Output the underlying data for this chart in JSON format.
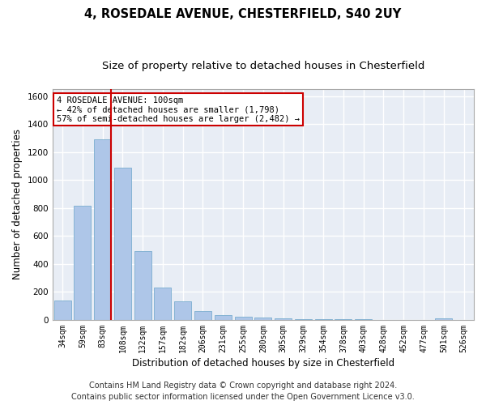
{
  "title1": "4, ROSEDALE AVENUE, CHESTERFIELD, S40 2UY",
  "title2": "Size of property relative to detached houses in Chesterfield",
  "xlabel": "Distribution of detached houses by size in Chesterfield",
  "ylabel": "Number of detached properties",
  "categories": [
    "34sqm",
    "59sqm",
    "83sqm",
    "108sqm",
    "132sqm",
    "157sqm",
    "182sqm",
    "206sqm",
    "231sqm",
    "255sqm",
    "280sqm",
    "305sqm",
    "329sqm",
    "354sqm",
    "378sqm",
    "403sqm",
    "428sqm",
    "452sqm",
    "477sqm",
    "501sqm",
    "526sqm"
  ],
  "values": [
    140,
    815,
    1290,
    1090,
    490,
    230,
    130,
    65,
    35,
    25,
    15,
    12,
    8,
    5,
    4,
    3,
    2,
    2,
    2,
    12,
    2
  ],
  "bar_color": "#aec6e8",
  "bar_edge_color": "#7aadd0",
  "vline_color": "#cc0000",
  "ylim": [
    0,
    1650
  ],
  "yticks": [
    0,
    200,
    400,
    600,
    800,
    1000,
    1200,
    1400,
    1600
  ],
  "annotation_text": "4 ROSEDALE AVENUE: 100sqm\n← 42% of detached houses are smaller (1,798)\n57% of semi-detached houses are larger (2,482) →",
  "annotation_box_color": "#cc0000",
  "footer1": "Contains HM Land Registry data © Crown copyright and database right 2024.",
  "footer2": "Contains public sector information licensed under the Open Government Licence v3.0.",
  "fig_bg_color": "#ffffff",
  "plot_bg_color": "#e8edf5",
  "grid_color": "#ffffff",
  "title1_fontsize": 10.5,
  "title2_fontsize": 9.5,
  "tick_fontsize": 7,
  "xlabel_fontsize": 8.5,
  "ylabel_fontsize": 8.5,
  "annotation_fontsize": 7.5,
  "footer_fontsize": 7
}
